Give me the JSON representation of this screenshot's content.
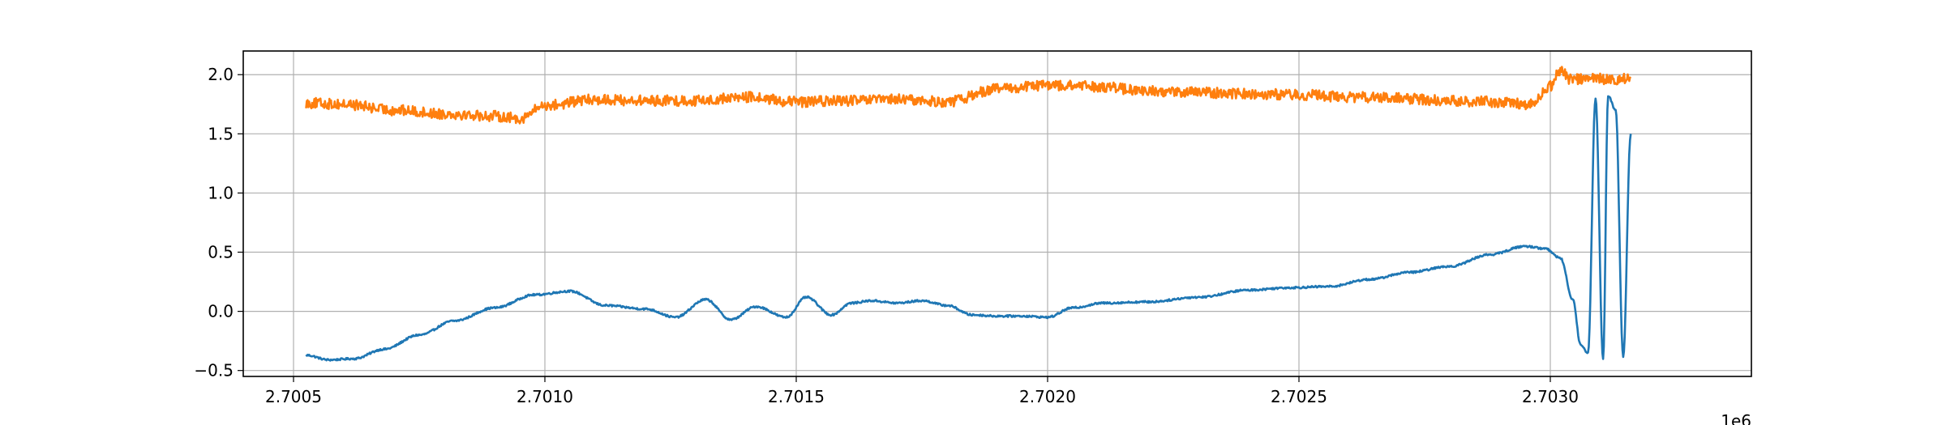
{
  "chart_data": {
    "type": "line",
    "title": "",
    "xlabel": "",
    "ylabel": "",
    "x_offset_label": "1e6",
    "xlim": [
      2700400,
      2703400
    ],
    "ylim": [
      -0.55,
      2.2
    ],
    "grid": true,
    "x_ticks": [
      {
        "value": 2700500,
        "label": "2.7005"
      },
      {
        "value": 2701000,
        "label": "2.7010"
      },
      {
        "value": 2701500,
        "label": "2.7015"
      },
      {
        "value": 2702000,
        "label": "2.7020"
      },
      {
        "value": 2702500,
        "label": "2.7025"
      },
      {
        "value": 2703000,
        "label": "2.7030"
      }
    ],
    "y_ticks": [
      {
        "value": -0.5,
        "label": "−0.5"
      },
      {
        "value": 0.0,
        "label": "0.0"
      },
      {
        "value": 0.5,
        "label": "0.5"
      },
      {
        "value": 1.0,
        "label": "1.0"
      },
      {
        "value": 1.5,
        "label": "1.5"
      },
      {
        "value": 2.0,
        "label": "2.0"
      }
    ],
    "series": [
      {
        "color": "#1f77b4",
        "x": [
          2700525,
          2700570,
          2700620,
          2700680,
          2700750,
          2700820,
          2700900,
          2700980,
          2701050,
          2701120,
          2701200,
          2701260,
          2701320,
          2701370,
          2701420,
          2701480,
          2701520,
          2701570,
          2701610,
          2701650,
          2701700,
          2701750,
          2701800,
          2701850,
          2701900,
          2701950,
          2702000,
          2702050,
          2702110,
          2702200,
          2702300,
          2702400,
          2702480,
          2702560,
          2702640,
          2702720,
          2702800,
          2702880,
          2702950,
          2702990,
          2703020,
          2703045,
          2703060,
          2703075,
          2703090,
          2703105,
          2703115,
          2703130,
          2703145,
          2703160
        ],
        "y": [
          -0.37,
          -0.41,
          -0.4,
          -0.32,
          -0.2,
          -0.08,
          0.03,
          0.14,
          0.17,
          0.05,
          0.02,
          -0.05,
          0.1,
          -0.07,
          0.04,
          -0.05,
          0.12,
          -0.03,
          0.07,
          0.09,
          0.07,
          0.09,
          0.05,
          -0.03,
          -0.04,
          -0.04,
          -0.05,
          0.03,
          0.07,
          0.08,
          0.12,
          0.18,
          0.2,
          0.21,
          0.27,
          0.33,
          0.38,
          0.48,
          0.55,
          0.53,
          0.45,
          0.1,
          -0.28,
          -0.35,
          1.8,
          -0.4,
          1.82,
          1.7,
          -0.38,
          1.5
        ],
        "noise": 0.008
      },
      {
        "color": "#ff7f0e",
        "x": [
          2700525,
          2700600,
          2700700,
          2700800,
          2700900,
          2700950,
          2701000,
          2701100,
          2701200,
          2701300,
          2701400,
          2701500,
          2701600,
          2701700,
          2701800,
          2701900,
          2702000,
          2702100,
          2702200,
          2702300,
          2702400,
          2702500,
          2702600,
          2702700,
          2702800,
          2702900,
          2702960,
          2703000,
          2703020,
          2703040,
          2703080,
          2703120,
          2703160
        ],
        "y": [
          1.76,
          1.75,
          1.7,
          1.67,
          1.65,
          1.63,
          1.74,
          1.79,
          1.78,
          1.78,
          1.81,
          1.77,
          1.78,
          1.79,
          1.77,
          1.88,
          1.91,
          1.9,
          1.86,
          1.85,
          1.84,
          1.83,
          1.81,
          1.8,
          1.78,
          1.77,
          1.75,
          1.9,
          2.04,
          1.96,
          1.97,
          1.96,
          1.97
        ],
        "noise": 0.045
      }
    ]
  }
}
